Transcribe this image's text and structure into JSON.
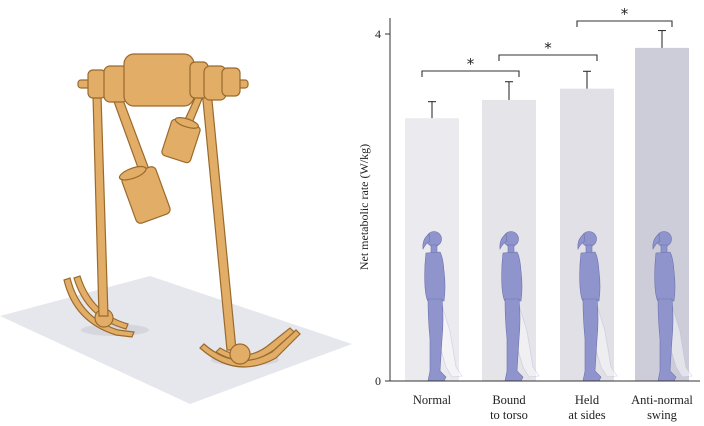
{
  "colors": {
    "wood": "#e2ad67",
    "wood_stroke": "#9a6a2c",
    "floor": "#e5e6ec",
    "figure_fill": "#8f94cc",
    "figure_stroke": "#6d72ad",
    "axis": "#333333"
  },
  "chart_data": {
    "type": "bar",
    "categories": [
      {
        "line1": "Normal",
        "line2": ""
      },
      {
        "line1": "Bound",
        "line2": "to torso"
      },
      {
        "line1": "Held",
        "line2": "at sides"
      },
      {
        "line1": "Anti-normal",
        "line2": "swing"
      }
    ],
    "values": [
      3.03,
      3.24,
      3.37,
      3.84
    ],
    "errors": [
      0.19,
      0.21,
      0.2,
      0.2
    ],
    "bar_colors": [
      "#ebebef",
      "#e4e4e9",
      "#e0e0e6",
      "#cdcdd9"
    ],
    "ylabel": "Net metabolic rate (W/kg)",
    "yticks": [
      "0",
      "4"
    ],
    "ylim": [
      0,
      4.2
    ],
    "significance": [
      {
        "from": 0,
        "to": 1,
        "label": "*"
      },
      {
        "from": 1,
        "to": 2,
        "label": "*"
      },
      {
        "from": 2,
        "to": 3,
        "label": "*"
      }
    ],
    "grid": false,
    "legend": "none"
  }
}
